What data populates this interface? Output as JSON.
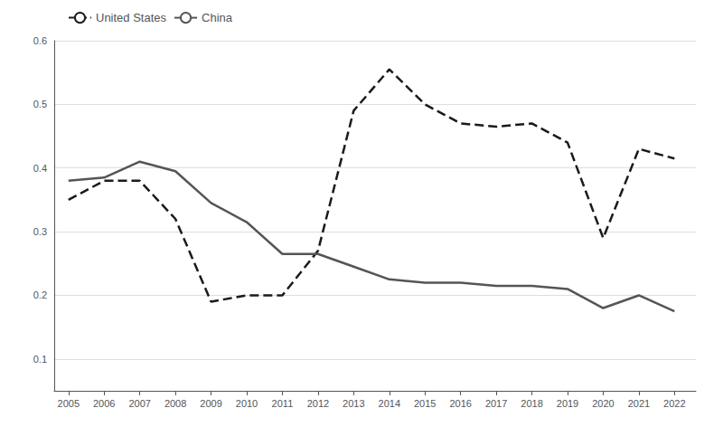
{
  "chart_data": {
    "type": "line",
    "x": [
      2005,
      2006,
      2007,
      2008,
      2009,
      2010,
      2011,
      2012,
      2013,
      2014,
      2015,
      2016,
      2017,
      2018,
      2019,
      2020,
      2021,
      2022
    ],
    "series": [
      {
        "name": "United States",
        "color": "#1a1a1a",
        "line_style": "dashed",
        "values": [
          0.35,
          0.38,
          0.38,
          0.32,
          0.19,
          0.2,
          0.2,
          0.27,
          0.49,
          0.555,
          0.5,
          0.47,
          0.465,
          0.47,
          0.44,
          0.29,
          0.43,
          0.415
        ]
      },
      {
        "name": "China",
        "color": "#555555",
        "line_style": "solid",
        "values": [
          0.38,
          0.385,
          0.41,
          0.395,
          0.345,
          0.315,
          0.265,
          0.265,
          0.245,
          0.225,
          0.22,
          0.22,
          0.215,
          0.215,
          0.21,
          0.18,
          0.2,
          0.175
        ]
      }
    ],
    "xlim": [
      2004.6,
      2022.6
    ],
    "xticks": [
      2005,
      2006,
      2007,
      2008,
      2009,
      2010,
      2011,
      2012,
      2013,
      2014,
      2015,
      2016,
      2017,
      2018,
      2019,
      2020,
      2021,
      2022
    ],
    "ylim": [
      0.05,
      0.6
    ],
    "yticks": [
      0.1,
      0.2,
      0.3,
      0.4,
      0.5,
      0.6
    ],
    "grid": true,
    "legend": "upper left"
  }
}
